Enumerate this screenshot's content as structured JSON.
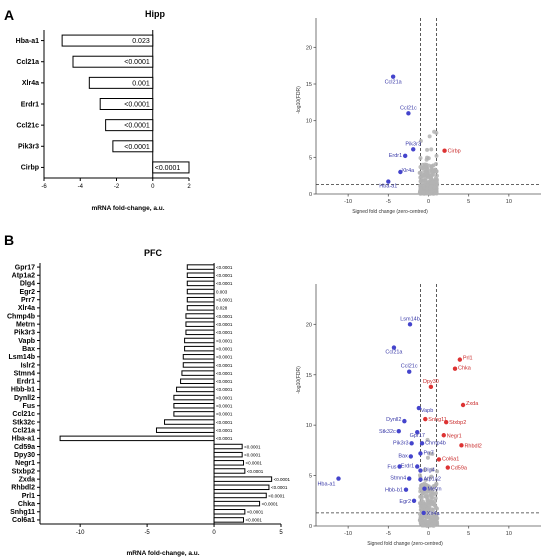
{
  "panels": {
    "A": "A",
    "B": "B"
  },
  "colors": {
    "blue": "#4444cc",
    "red": "#dd3333",
    "gray": "#b3b3b3",
    "bar_fill": "#ffffff",
    "bar_stroke": "#000000"
  },
  "chart_data": [
    {
      "id": "hipp-bar",
      "type": "bar",
      "orientation": "horizontal",
      "title": "Hipp",
      "xlabel": "mRNA fold-change, a.u.",
      "xlim": [
        -6,
        2
      ],
      "xticks": [
        "-6",
        "-4",
        "-2",
        "0",
        "2"
      ],
      "categories": [
        "Hba-a1",
        "Ccl21a",
        "Xlr4a",
        "Erdr1",
        "Ccl21c",
        "Pik3r3",
        "Cirbp"
      ],
      "values": [
        -5.0,
        -4.4,
        -3.5,
        -2.9,
        -2.6,
        -2.2,
        2.0
      ],
      "pvalues": [
        "0.023",
        "<0.0001",
        "0.001",
        "<0.0001",
        "<0.0001",
        "<0.0001",
        "<0.0001"
      ]
    },
    {
      "id": "hipp-volcano",
      "type": "scatter",
      "xlabel": "Signed fold change (zero-centred)",
      "ylabel": "-log10(FDR)",
      "xlim": [
        -14,
        14
      ],
      "ylim": [
        0,
        24
      ],
      "xticks": [
        "-10",
        "-5",
        "0",
        "5",
        "10"
      ],
      "yticks": [
        "0",
        "5",
        "10",
        "15",
        "20"
      ],
      "vlines": [
        -1,
        1
      ],
      "hline": 1.3,
      "points": [
        {
          "label": "Ccl21a",
          "x": -4.4,
          "y": 16,
          "color": "blue"
        },
        {
          "label": "Ccl21c",
          "x": -2.5,
          "y": 11,
          "color": "blue"
        },
        {
          "label": "Pik3r3",
          "x": -1.9,
          "y": 6.1,
          "color": "blue"
        },
        {
          "label": "Erdr1",
          "x": -2.9,
          "y": 5.2,
          "color": "blue"
        },
        {
          "label": "Xlr4a",
          "x": -3.5,
          "y": 3.0,
          "color": "blue"
        },
        {
          "label": "Hba-a1",
          "x": -5.0,
          "y": 1.7,
          "color": "blue"
        },
        {
          "label": "Cirbp",
          "x": 2.0,
          "y": 5.9,
          "color": "red"
        }
      ]
    },
    {
      "id": "pfc-bar",
      "type": "bar",
      "orientation": "horizontal",
      "title": "PFC",
      "xlabel": "mRNA fold-change, a.u.",
      "xlim": [
        -13,
        5
      ],
      "xticks": [
        "-10",
        "-5",
        "0",
        "5"
      ],
      "categories": [
        "Gpr17",
        "Atp1a2",
        "Dlg4",
        "Egr2",
        "Prr7",
        "Xlr4a",
        "Chmp4b",
        "Metrn",
        "Pik3r3",
        "Vapb",
        "Bax",
        "Lsm14b",
        "Islr2",
        "Stmn4",
        "Erdr1",
        "Hbb-b1",
        "Dynll2",
        "Fus",
        "Ccl21c",
        "Stk32c",
        "Ccl21a",
        "Hba-a1",
        "Cd59a",
        "Dpy30",
        "Negr1",
        "Stxbp2",
        "Zxda",
        "Rhbdl2",
        "Prl1",
        "Chka",
        "Snhg11",
        "Col6a1"
      ],
      "values": [
        -2.0,
        -2.0,
        -2.0,
        -2.0,
        -2.0,
        -2.0,
        -2.1,
        -2.1,
        -2.1,
        -2.2,
        -2.2,
        -2.3,
        -2.3,
        -2.4,
        -2.5,
        -2.8,
        -3.0,
        -3.0,
        -3.0,
        -3.7,
        -4.3,
        -11.5,
        2.1,
        2.1,
        2.2,
        2.3,
        4.3,
        4.1,
        3.9,
        3.4,
        2.3,
        2.2
      ],
      "pvalues": [
        "<0.0001",
        "<0.0001",
        "<0.0001",
        "0.003",
        "<0.0001",
        "0.028",
        "<0.0001",
        "<0.0001",
        "<0.0001",
        "<0.0001",
        "<0.0001",
        "<0.0001",
        "<0.0001",
        "<0.0001",
        "<0.0001",
        "<0.0001",
        "<0.0001",
        "<0.0001",
        "<0.0001",
        "<0.0001",
        "<0.0001",
        "<0.0001",
        "<0.0001",
        "<0.0001",
        "<0.0001",
        "<0.0001",
        "<0.0001",
        "<0.0001",
        "<0.0001",
        "<0.0001",
        "<0.0001",
        "<0.0001"
      ]
    },
    {
      "id": "pfc-volcano",
      "type": "scatter",
      "xlabel": "Signed fold change (zero-centred)",
      "ylabel": "-log10(FDR)",
      "xlim": [
        -14,
        14
      ],
      "ylim": [
        0,
        24
      ],
      "xticks": [
        "-10",
        "-5",
        "0",
        "5",
        "10"
      ],
      "yticks": [
        "0",
        "5",
        "10",
        "15",
        "20"
      ],
      "vlines": [
        -1,
        1
      ],
      "hline": 1.3,
      "points": [
        {
          "label": "Lsm14b",
          "x": -2.3,
          "y": 20,
          "color": "blue"
        },
        {
          "label": "Ccl21a",
          "x": -4.3,
          "y": 17.7,
          "color": "blue"
        },
        {
          "label": "Ccl21c",
          "x": -2.4,
          "y": 15.3,
          "color": "blue"
        },
        {
          "label": "Prl1",
          "x": 3.9,
          "y": 16.5,
          "color": "red"
        },
        {
          "label": "Chka",
          "x": 3.3,
          "y": 15.6,
          "color": "red"
        },
        {
          "label": "Dpy30",
          "x": 0.3,
          "y": 13.8,
          "color": "red"
        },
        {
          "label": "Zxda",
          "x": 4.3,
          "y": 12.0,
          "color": "red"
        },
        {
          "label": "Vapb",
          "x": -1.2,
          "y": 11.7,
          "color": "blue"
        },
        {
          "label": "Snhg11",
          "x": -0.4,
          "y": 10.6,
          "color": "red"
        },
        {
          "label": "Stxbp2",
          "x": 2.2,
          "y": 10.3,
          "color": "red"
        },
        {
          "label": "Dynll2",
          "x": -3.0,
          "y": 10.4,
          "color": "blue"
        },
        {
          "label": "Stk32c",
          "x": -3.7,
          "y": 9.4,
          "color": "blue"
        },
        {
          "label": "Gpr17",
          "x": -1.4,
          "y": 9.3,
          "color": "blue"
        },
        {
          "label": "Negr1",
          "x": 1.9,
          "y": 9.0,
          "color": "red"
        },
        {
          "label": "Rhbdl2",
          "x": 4.1,
          "y": 8.0,
          "color": "red"
        },
        {
          "label": "Pik3r3",
          "x": -2.1,
          "y": 8.2,
          "color": "blue"
        },
        {
          "label": "Chmp4b",
          "x": -0.8,
          "y": 8.2,
          "color": "blue"
        },
        {
          "label": "Bax",
          "x": -2.2,
          "y": 6.9,
          "color": "blue"
        },
        {
          "label": "Prr7",
          "x": -1.0,
          "y": 7.2,
          "color": "blue"
        },
        {
          "label": "Col6a1",
          "x": 1.3,
          "y": 6.6,
          "color": "red"
        },
        {
          "label": "Cd59a",
          "x": 2.4,
          "y": 5.8,
          "color": "red"
        },
        {
          "label": "Fus",
          "x": -3.6,
          "y": 5.9,
          "color": "blue"
        },
        {
          "label": "Erdr1",
          "x": -1.4,
          "y": 5.9,
          "color": "blue"
        },
        {
          "label": "Hba-a1",
          "x": -11.2,
          "y": 4.7,
          "color": "blue"
        },
        {
          "label": "Dlg4",
          "x": -1.0,
          "y": 5.5,
          "color": "blue"
        },
        {
          "label": "Stmn4",
          "x": -2.4,
          "y": 4.7,
          "color": "blue"
        },
        {
          "label": "Atp1a2",
          "x": -1.0,
          "y": 4.6,
          "color": "blue"
        },
        {
          "label": "Hbb-b1",
          "x": -2.8,
          "y": 3.6,
          "color": "blue"
        },
        {
          "label": "Metrn",
          "x": -0.5,
          "y": 3.7,
          "color": "blue"
        },
        {
          "label": "Egr2",
          "x": -1.8,
          "y": 2.5,
          "color": "blue"
        },
        {
          "label": "Xlr4a",
          "x": -0.6,
          "y": 1.3,
          "color": "blue"
        }
      ]
    }
  ]
}
